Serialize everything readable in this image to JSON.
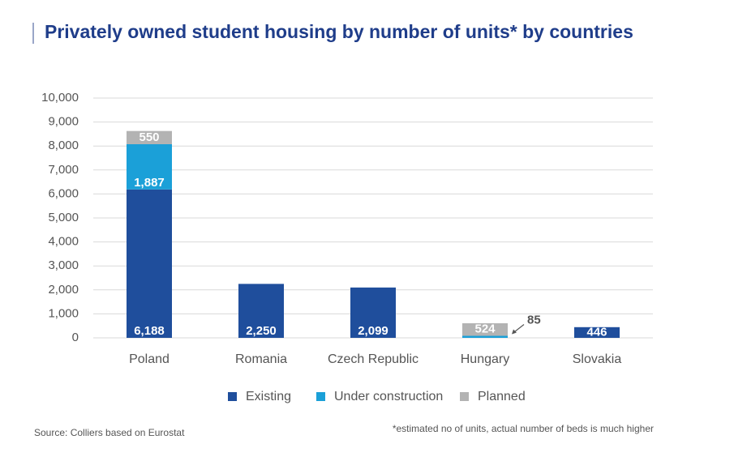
{
  "chart_data": {
    "type": "stacked_bar",
    "title": "Privately owned student housing by number of units* by countries",
    "categories": [
      "Poland",
      "Romania",
      "Czech Republic",
      "Hungary",
      "Slovakia"
    ],
    "series": [
      {
        "name": "Existing",
        "color": "#1f4e9c",
        "values": [
          6188,
          2250,
          2099,
          null,
          446
        ],
        "value_labels": [
          "6,188",
          "2,250",
          "2,099",
          null,
          "446"
        ]
      },
      {
        "name": "Under construction",
        "color": "#1ba0d8",
        "values": [
          1887,
          null,
          null,
          85,
          null
        ],
        "value_labels": [
          "1,887",
          null,
          null,
          "85",
          null
        ]
      },
      {
        "name": "Planned",
        "color": "#b3b3b3",
        "values": [
          550,
          null,
          null,
          524,
          null
        ],
        "value_labels": [
          "550",
          null,
          null,
          "524",
          null
        ]
      }
    ],
    "ylim": [
      0,
      10000
    ],
    "yticks": [
      0,
      {
        "value": 1000,
        "label": "1,000"
      },
      {
        "value": 2000,
        "label": "2,000"
      },
      {
        "value": 3000,
        "label": "3,000"
      },
      {
        "value": 4000,
        "label": "4,000"
      },
      {
        "value": 5000,
        "label": "5,000"
      },
      {
        "value": 6000,
        "label": "6,000"
      },
      {
        "value": 7000,
        "label": "7,000"
      },
      {
        "value": 8000,
        "label": "8,000"
      },
      {
        "value": 9000,
        "label": "9,000"
      },
      {
        "value": 10000,
        "label": "10,000"
      }
    ],
    "grid": true,
    "source": "Source: Colliers based on Eurostat",
    "footnote": "*estimated no of units, actual number of beds is much higher"
  }
}
